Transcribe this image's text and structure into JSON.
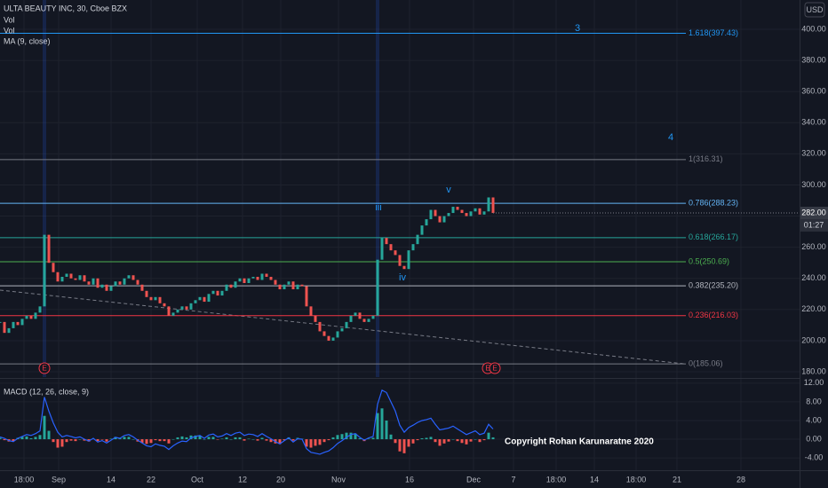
{
  "chart_data": {
    "type": "candles",
    "title": "ULTA BEAUTY INC, 30, Cboe BZX",
    "indicators": [
      "Vol",
      "Vol",
      "MA (9, close)"
    ],
    "currency": "USD",
    "last_price": {
      "value": 282,
      "label": "282.00"
    },
    "countdown": "01:27",
    "copyright": "Copyright Rohan Karunaratne 2020",
    "earnings_markers": [
      "E",
      "E",
      "E"
    ],
    "wave_labels": [
      "3",
      "4",
      "iii",
      "iv",
      "v"
    ],
    "up_color": "#26a69a",
    "down_color": "#ef5350",
    "xlim": [
      0,
      180
    ],
    "xticks": [
      {
        "value": 5.4,
        "label": "18:00"
      },
      {
        "value": 13.2,
        "label": "Sep"
      },
      {
        "value": 25,
        "label": "14"
      },
      {
        "value": 34,
        "label": "22"
      },
      {
        "value": 44.4,
        "label": "Oct"
      },
      {
        "value": 54.6,
        "label": "12"
      },
      {
        "value": 63.2,
        "label": "20"
      },
      {
        "value": 76.2,
        "label": "Nov"
      },
      {
        "value": 92.2,
        "label": "16"
      },
      {
        "value": 106.6,
        "label": "Dec"
      },
      {
        "value": 115.6,
        "label": "7"
      },
      {
        "value": 125.2,
        "label": "18:00"
      },
      {
        "value": 133.8,
        "label": "14"
      },
      {
        "value": 143.2,
        "label": "18:00"
      },
      {
        "value": 152.4,
        "label": "21"
      },
      {
        "value": 166.8,
        "label": "28"
      }
    ],
    "ylim": [
      176.6,
      418.8
    ],
    "yticks": [
      {
        "value": 180,
        "label": "180.00"
      },
      {
        "value": 200,
        "label": "200.00"
      },
      {
        "value": 220,
        "label": "220.00"
      },
      {
        "value": 240,
        "label": "240.00"
      },
      {
        "value": 260,
        "label": "260.00"
      },
      {
        "value": 280,
        "label": "280.00"
      },
      {
        "value": 300,
        "label": "300.00"
      },
      {
        "value": 320,
        "label": "320.00"
      },
      {
        "value": 340,
        "label": "340.00"
      },
      {
        "value": 360,
        "label": "360.00"
      },
      {
        "value": 380,
        "label": "380.00"
      },
      {
        "value": 400,
        "label": "400.00"
      }
    ],
    "grid": true,
    "values": [
      212,
      205,
      208,
      212,
      210,
      214,
      216,
      214,
      218,
      222,
      268,
      250,
      244,
      238,
      241,
      243,
      240,
      239,
      242,
      238,
      236,
      240,
      234,
      236,
      232,
      235,
      238,
      236,
      240,
      242,
      239,
      236,
      232,
      228,
      226,
      228,
      224,
      222,
      216,
      218,
      220,
      222,
      220,
      224,
      226,
      228,
      225,
      230,
      232,
      229,
      232,
      236,
      234,
      238,
      240,
      237,
      240,
      241,
      239,
      243,
      241,
      239,
      236,
      233,
      236,
      238,
      233,
      236,
      235,
      222,
      216,
      212,
      206,
      203,
      200,
      202,
      206,
      208,
      212,
      216,
      218,
      214,
      212,
      214,
      216,
      252,
      266,
      262,
      258,
      255,
      248,
      246,
      258,
      262,
      268,
      274,
      278,
      284,
      280,
      276,
      280,
      282,
      286,
      284,
      282,
      280,
      283,
      285,
      281,
      283,
      292,
      282
    ],
    "fib_levels": [
      {
        "label": "1.618(397.43)",
        "value": 397.43,
        "color": "#2196f3"
      },
      {
        "label": "1(316.31)",
        "value": 316.31,
        "color": "#787b86"
      },
      {
        "label": "0.786(288.23)",
        "value": 288.23,
        "color": "#64b5f6"
      },
      {
        "label": "0.618(266.17)",
        "value": 266.17,
        "color": "#26a69a"
      },
      {
        "label": "0.5(250.69)",
        "value": 250.69,
        "color": "#4caf50"
      },
      {
        "label": "0.382(235.20)",
        "value": 235.2,
        "color": "#b2b5be"
      },
      {
        "label": "0.236(216.03)",
        "value": 216.03,
        "color": "#f23645"
      },
      {
        "label": "0(185.06)",
        "value": 185.06,
        "color": "#787b86"
      }
    ],
    "macd": {
      "title": "MACD (12, 26, close, 9)",
      "line_color": "#2962ff",
      "ylim": [
        -5.5,
        13.3
      ],
      "yticks": [
        {
          "value": -4,
          "label": "-4.00"
        },
        {
          "value": 0,
          "label": "0.00"
        },
        {
          "value": 4,
          "label": "4.00"
        },
        {
          "value": 8,
          "label": "8.00"
        },
        {
          "value": 12,
          "label": "12.00"
        }
      ],
      "values": [
        0.5,
        0.2,
        -0.3,
        -0.5,
        0.2,
        0.6,
        1.0,
        0.8,
        1.2,
        1.8,
        9.0,
        6.0,
        3.5,
        1.5,
        0.5,
        0.8,
        0.6,
        0.3,
        0.5,
        0.0,
        -0.4,
        0.2,
        -0.6,
        -0.3,
        -0.8,
        -0.2,
        0.4,
        0.2,
        0.8,
        1.0,
        0.5,
        -0.2,
        -0.8,
        -1.4,
        -1.6,
        -1.0,
        -1.3,
        -1.5,
        -2.2,
        -1.4,
        -0.8,
        -0.4,
        -0.5,
        0.3,
        0.6,
        0.8,
        0.2,
        0.9,
        1.1,
        0.5,
        0.7,
        1.2,
        0.8,
        1.3,
        1.5,
        0.8,
        1.1,
        1.0,
        0.6,
        1.2,
        0.6,
        0.1,
        -0.5,
        -1.0,
        -0.3,
        0.3,
        -0.6,
        0.1,
        0.0,
        -2.0,
        -2.8,
        -3.0,
        -3.2,
        -2.8,
        -2.5,
        -1.8,
        -0.9,
        -0.3,
        0.4,
        1.0,
        1.2,
        0.4,
        -0.2,
        0.3,
        0.6,
        7.5,
        10.5,
        10.0,
        8.0,
        6.0,
        3.0,
        1.5,
        2.5,
        3.0,
        3.6,
        4.0,
        4.2,
        4.5,
        3.2,
        2.0,
        2.2,
        2.4,
        2.8,
        2.2,
        1.6,
        1.0,
        1.4,
        1.8,
        1.0,
        1.3,
        3.2,
        2.2
      ],
      "histogram": [
        0.3,
        -0.2,
        -0.5,
        -0.4,
        0.3,
        0.5,
        0.6,
        0.2,
        0.5,
        0.9,
        5.0,
        1.8,
        -0.6,
        -1.8,
        -1.6,
        -0.6,
        -0.3,
        -0.4,
        0.0,
        -0.3,
        -0.5,
        0.1,
        -0.4,
        -0.1,
        -0.5,
        0.1,
        0.5,
        0.2,
        0.5,
        0.5,
        0.0,
        -0.5,
        -0.8,
        -1.0,
        -0.8,
        -0.2,
        -0.4,
        -0.4,
        -0.9,
        0.0,
        0.4,
        0.6,
        0.4,
        0.8,
        0.8,
        0.7,
        0.0,
        0.5,
        0.5,
        -0.1,
        0.1,
        0.4,
        0.0,
        0.4,
        0.4,
        -0.3,
        0.1,
        0.0,
        -0.3,
        0.3,
        -0.3,
        -0.6,
        -0.9,
        -1.0,
        -0.2,
        0.4,
        -0.3,
        0.3,
        0.1,
        -1.6,
        -1.8,
        -1.4,
        -1.2,
        -0.6,
        -0.2,
        0.4,
        0.9,
        1.1,
        1.4,
        1.4,
        1.2,
        0.2,
        -0.4,
        0.1,
        0.3,
        5.6,
        6.6,
        4.0,
        1.0,
        -0.8,
        -2.6,
        -3.0,
        -1.6,
        -0.9,
        -0.2,
        0.2,
        0.3,
        0.5,
        -0.6,
        -1.4,
        -0.9,
        -0.5,
        0.0,
        -0.4,
        -0.8,
        -1.1,
        -0.5,
        0.0,
        -0.6,
        -0.2,
        1.4,
        0.4
      ]
    }
  }
}
